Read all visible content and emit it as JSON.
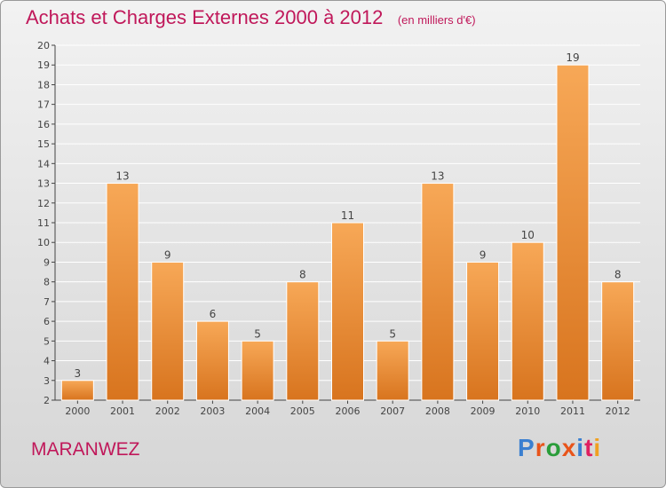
{
  "title": "Achats et Charges Externes 2000 à 2012",
  "unit": "(en milliers d'€)",
  "commune": "MARANWEZ",
  "logo": {
    "text": "Proxiti",
    "letter_colors": [
      "#3a7fd0",
      "#e8541a",
      "#2a9d3a",
      "#e8541a",
      "#3a7fd0",
      "#e02060",
      "#f0a020"
    ]
  },
  "colors": {
    "title": "#c0185a",
    "bar_light": "#f7a857",
    "bar_dark": "#d8741e",
    "axis": "#444444",
    "grid": "#ffffff"
  },
  "chart_data": {
    "type": "bar",
    "title": "Achats et Charges Externes 2000 à 2012",
    "subtitle": "(en milliers d'€)",
    "categories": [
      "2000",
      "2001",
      "2002",
      "2003",
      "2004",
      "2005",
      "2006",
      "2007",
      "2008",
      "2009",
      "2010",
      "2011",
      "2012"
    ],
    "values": [
      3,
      13,
      9,
      6,
      5,
      8,
      11,
      5,
      13,
      9,
      10,
      19,
      8
    ],
    "ylim": [
      2,
      20
    ],
    "yticks": [
      2,
      3,
      4,
      5,
      6,
      7,
      8,
      9,
      10,
      11,
      12,
      13,
      14,
      15,
      16,
      17,
      18,
      19,
      20
    ],
    "grid": true,
    "data_labels": true
  }
}
